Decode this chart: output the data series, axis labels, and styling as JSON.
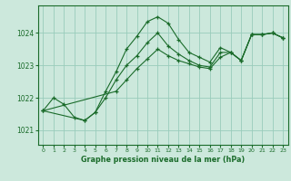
{
  "title": "Graphe pression niveau de la mer (hPa)",
  "background_color": "#cce8dc",
  "grid_color": "#99ccbb",
  "line_color": "#1a6b2a",
  "marker_color": "#1a6b2a",
  "xlim": [
    -0.5,
    23.5
  ],
  "ylim": [
    1020.55,
    1024.85
  ],
  "yticks": [
    1021,
    1022,
    1023,
    1024
  ],
  "xticks": [
    0,
    1,
    2,
    3,
    4,
    5,
    6,
    7,
    8,
    9,
    10,
    11,
    12,
    13,
    14,
    15,
    16,
    17,
    18,
    19,
    20,
    21,
    22,
    23
  ],
  "series": [
    {
      "x": [
        0,
        1,
        2,
        3,
        4,
        5,
        6,
        7,
        8,
        9,
        10,
        11,
        12,
        13,
        14,
        15,
        16,
        17,
        18,
        19,
        20,
        21,
        22,
        23
      ],
      "y": [
        1021.6,
        1022.0,
        1021.8,
        1021.4,
        1021.3,
        1021.55,
        1022.2,
        1022.8,
        1023.5,
        1023.9,
        1024.35,
        1024.5,
        1024.3,
        1023.8,
        1023.4,
        1023.25,
        1023.1,
        1023.55,
        1023.4,
        1023.15,
        1023.95,
        1023.95,
        1024.0,
        1023.85
      ]
    },
    {
      "x": [
        0,
        4,
        5,
        6,
        7,
        8,
        9,
        10,
        11,
        12,
        13,
        14,
        15,
        16,
        17,
        18,
        19,
        20,
        21,
        22,
        23
      ],
      "y": [
        1021.6,
        1021.3,
        1021.55,
        1022.0,
        1022.55,
        1023.0,
        1023.3,
        1023.7,
        1024.0,
        1023.6,
        1023.35,
        1023.15,
        1023.0,
        1022.95,
        1023.4,
        1023.4,
        1023.15,
        1023.95,
        1023.95,
        1024.0,
        1023.85
      ]
    },
    {
      "x": [
        0,
        7,
        8,
        9,
        10,
        11,
        12,
        13,
        14,
        15,
        16,
        17,
        18,
        19,
        20,
        21,
        22,
        23
      ],
      "y": [
        1021.6,
        1022.2,
        1022.55,
        1022.9,
        1023.2,
        1023.5,
        1023.3,
        1023.15,
        1023.05,
        1022.95,
        1022.9,
        1023.25,
        1023.4,
        1023.15,
        1023.95,
        1023.95,
        1024.0,
        1023.85
      ]
    }
  ]
}
